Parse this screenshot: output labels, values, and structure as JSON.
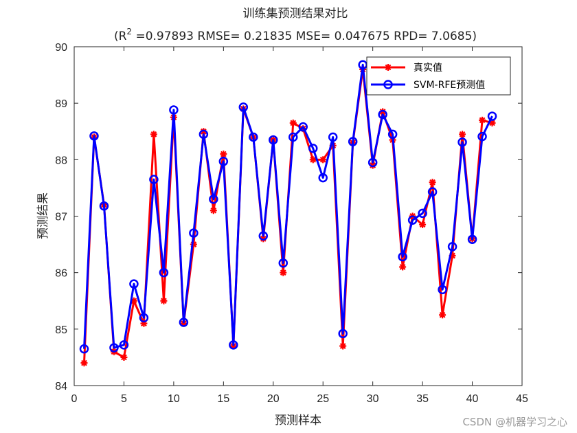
{
  "chart_data": {
    "type": "line",
    "title": "训练集预测结果对比",
    "subtitle": {
      "prefix": "(R",
      "sup": "2",
      "rest": " =0.97893 RMSE= 0.21835 MSE= 0.047675 RPD= 7.0685)"
    },
    "xlabel": "预测样本",
    "ylabel": "预测结果",
    "xlim": [
      0,
      45
    ],
    "ylim": [
      84,
      90
    ],
    "xticks": [
      0,
      5,
      10,
      15,
      20,
      25,
      30,
      35,
      40,
      45
    ],
    "yticks": [
      84,
      85,
      86,
      87,
      88,
      89,
      90
    ],
    "grid": false,
    "legend_position": "top-right",
    "x": [
      1,
      2,
      3,
      4,
      5,
      6,
      7,
      8,
      9,
      10,
      11,
      12,
      13,
      14,
      15,
      16,
      17,
      18,
      19,
      20,
      21,
      22,
      23,
      24,
      25,
      26,
      27,
      28,
      29,
      30,
      31,
      32,
      33,
      34,
      35,
      36,
      37,
      38,
      39,
      40,
      41,
      42
    ],
    "series": [
      {
        "name": "真实值",
        "color": "#ff0000",
        "marker": "asterisk",
        "values": [
          84.4,
          88.4,
          87.2,
          84.6,
          84.5,
          85.5,
          85.1,
          88.45,
          85.5,
          88.75,
          85.1,
          86.5,
          88.5,
          87.1,
          88.1,
          84.7,
          88.9,
          88.4,
          86.6,
          88.35,
          86.0,
          88.65,
          88.55,
          88.0,
          88.0,
          88.25,
          84.7,
          88.3,
          89.6,
          87.9,
          88.85,
          88.35,
          86.1,
          87.0,
          86.85,
          87.6,
          85.25,
          86.3,
          88.45,
          86.6,
          88.7,
          88.65
        ]
      },
      {
        "name": "SVM-RFE预测值",
        "color": "#0000ff",
        "marker": "circle",
        "values": [
          84.65,
          88.42,
          87.18,
          84.67,
          84.72,
          85.8,
          85.2,
          87.65,
          86.0,
          88.88,
          85.12,
          86.7,
          88.45,
          87.3,
          87.97,
          84.72,
          88.93,
          88.4,
          86.65,
          88.35,
          86.17,
          88.4,
          88.58,
          88.2,
          87.68,
          88.4,
          84.92,
          88.32,
          89.68,
          87.95,
          88.8,
          88.45,
          86.28,
          86.93,
          87.05,
          87.43,
          85.7,
          86.46,
          88.31,
          86.59,
          88.41,
          88.77
        ]
      }
    ]
  },
  "watermark": "CSDN @机器学习之心"
}
